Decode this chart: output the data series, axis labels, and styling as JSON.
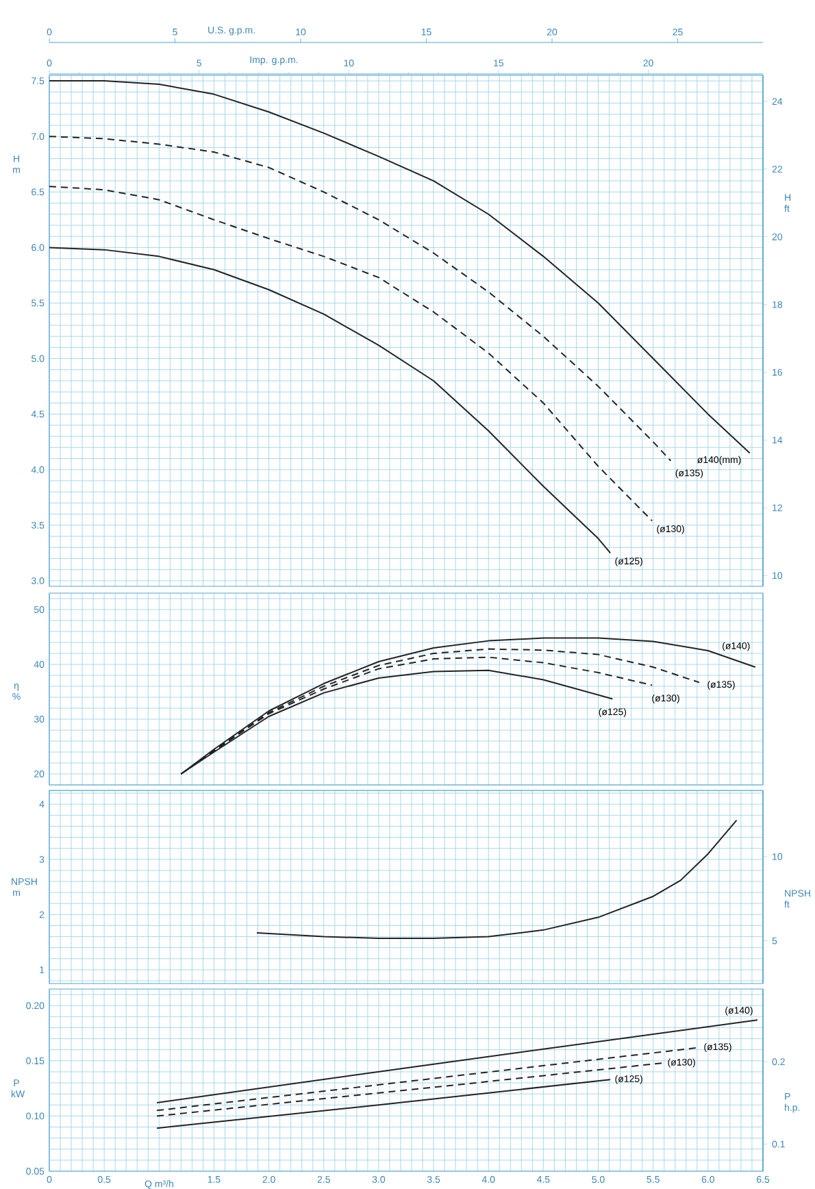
{
  "chart_data": [
    {
      "type": "line",
      "ylabel": "H m",
      "y2label": "H ft",
      "x2label": "Imp. g.p.m.",
      "grid": true,
      "tick_labels": "y",
      "annotations": [
        "U.S. g.p.m.",
        "0",
        "5",
        "10",
        "15",
        "20",
        "25"
      ],
      "xlim": [
        0,
        6.5
      ],
      "xticks": [
        0,
        0.1,
        0.2,
        0.3,
        0.4,
        0.5,
        0.6,
        0.7,
        0.8,
        0.9,
        1,
        1.1,
        1.2,
        1.3,
        1.4,
        1.5,
        1.6,
        1.7,
        1.8,
        1.9,
        2,
        2.1,
        2.2,
        2.3,
        2.4,
        2.5,
        2.6,
        2.7,
        2.8,
        2.9,
        3,
        3.1,
        3.2,
        3.3,
        3.4,
        3.5,
        3.6,
        3.7,
        3.8,
        3.9,
        4,
        4.1,
        4.2,
        4.3,
        4.4,
        4.5,
        4.6,
        4.7,
        4.8,
        4.9,
        5,
        5.1,
        5.2,
        5.3,
        5.4,
        5.5,
        5.6,
        5.7,
        5.8,
        5.9,
        6,
        6.1,
        6.2,
        6.3,
        6.4,
        6.5
      ],
      "x2lim": [
        0,
        23.83
      ],
      "x2ticks": [
        0,
        5,
        10,
        15,
        20
      ],
      "ylim": [
        2.95,
        7.55
      ],
      "yticks": [
        {
          "value": 3,
          "label": "3.0"
        },
        {
          "value": 3.1,
          "label": null
        },
        {
          "value": 3.2,
          "label": null
        },
        {
          "value": 3.3,
          "label": null
        },
        {
          "value": 3.4,
          "label": null
        },
        3.5,
        {
          "value": 3.6,
          "label": null
        },
        {
          "value": 3.7,
          "label": null
        },
        {
          "value": 3.8,
          "label": null
        },
        {
          "value": 3.9,
          "label": null
        },
        {
          "value": 4,
          "label": "4.0"
        },
        {
          "value": 4.1,
          "label": null
        },
        {
          "value": 4.2,
          "label": null
        },
        {
          "value": 4.3,
          "label": null
        },
        {
          "value": 4.4,
          "label": null
        },
        4.5,
        {
          "value": 4.6,
          "label": null
        },
        {
          "value": 4.7,
          "label": null
        },
        {
          "value": 4.8,
          "label": null
        },
        {
          "value": 4.9,
          "label": null
        },
        {
          "value": 5,
          "label": "5.0"
        },
        {
          "value": 5.1,
          "label": null
        },
        {
          "value": 5.2,
          "label": null
        },
        {
          "value": 5.3,
          "label": null
        },
        {
          "value": 5.4,
          "label": null
        },
        5.5,
        {
          "value": 5.6,
          "label": null
        },
        {
          "value": 5.7,
          "label": null
        },
        {
          "value": 5.8,
          "label": null
        },
        {
          "value": 5.9,
          "label": null
        },
        {
          "value": 6,
          "label": "6.0"
        },
        {
          "value": 6.1,
          "label": null
        },
        {
          "value": 6.2,
          "label": null
        },
        {
          "value": 6.3,
          "label": null
        },
        {
          "value": 6.4,
          "label": null
        },
        6.5,
        {
          "value": 6.6,
          "label": null
        },
        {
          "value": 6.7,
          "label": null
        },
        {
          "value": 6.8,
          "label": null
        },
        {
          "value": 6.9,
          "label": null
        },
        {
          "value": 7,
          "label": "7.0"
        },
        {
          "value": 7.1,
          "label": null
        },
        {
          "value": 7.2,
          "label": null
        },
        {
          "value": 7.3,
          "label": null
        },
        {
          "value": 7.4,
          "label": null
        },
        7.5
      ],
      "y2lim": [
        9.68,
        24.77
      ],
      "y2ticks": [
        10,
        12,
        14,
        16,
        18,
        20,
        22,
        24
      ],
      "series": [
        {
          "name": "ø140(mm)",
          "color": "#222222",
          "line_style": "solid",
          "x": [
            0,
            0.5,
            1,
            1.5,
            2,
            2.5,
            3,
            3.5,
            4,
            4.5,
            5,
            5.5,
            6,
            6.38
          ],
          "values": [
            7.5,
            7.5,
            7.47,
            7.38,
            7.22,
            7.03,
            6.82,
            6.6,
            6.3,
            5.92,
            5.5,
            5.0,
            4.5,
            4.15
          ]
        },
        {
          "name": "(ø135)",
          "color": "#222222",
          "line_style": "dashed",
          "x": [
            0,
            0.5,
            1,
            1.5,
            2,
            2.5,
            3,
            3.5,
            4,
            4.5,
            5,
            5.5,
            5.66
          ],
          "values": [
            7.0,
            6.98,
            6.93,
            6.86,
            6.72,
            6.5,
            6.25,
            5.95,
            5.6,
            5.2,
            4.75,
            4.25,
            4.08
          ]
        },
        {
          "name": "(ø130)",
          "color": "#222222",
          "line_style": "dashed",
          "x": [
            0,
            0.5,
            1,
            1.5,
            2,
            2.5,
            3,
            3.5,
            4,
            4.5,
            5,
            5.49
          ],
          "values": [
            6.55,
            6.52,
            6.43,
            6.25,
            6.08,
            5.92,
            5.73,
            5.42,
            5.05,
            4.6,
            4.03,
            3.54
          ]
        },
        {
          "name": "(ø125)",
          "color": "#222222",
          "line_style": "solid",
          "x": [
            0,
            0.5,
            1,
            1.5,
            2,
            2.5,
            3,
            3.5,
            4,
            4.5,
            5,
            5.11
          ],
          "values": [
            6.0,
            5.98,
            5.92,
            5.8,
            5.62,
            5.4,
            5.12,
            4.8,
            4.35,
            3.85,
            3.38,
            3.25
          ]
        }
      ]
    },
    {
      "type": "line",
      "ylabel": "η %",
      "grid": true,
      "tick_labels": "y",
      "xlim": [
        0,
        6.5
      ],
      "xticks": [
        0,
        0.1,
        0.2,
        0.3,
        0.4,
        0.5,
        0.6,
        0.7,
        0.8,
        0.9,
        1,
        1.1,
        1.2,
        1.3,
        1.4,
        1.5,
        1.6,
        1.7,
        1.8,
        1.9,
        2,
        2.1,
        2.2,
        2.3,
        2.4,
        2.5,
        2.6,
        2.7,
        2.8,
        2.9,
        3,
        3.1,
        3.2,
        3.3,
        3.4,
        3.5,
        3.6,
        3.7,
        3.8,
        3.9,
        4,
        4.1,
        4.2,
        4.3,
        4.4,
        4.5,
        4.6,
        4.7,
        4.8,
        4.9,
        5,
        5.1,
        5.2,
        5.3,
        5.4,
        5.5,
        5.6,
        5.7,
        5.8,
        5.9,
        6,
        6.1,
        6.2,
        6.3,
        6.4,
        6.5
      ],
      "ylim": [
        18,
        53
      ],
      "yticks": [
        {
          "value": 18,
          "label": null
        },
        20,
        {
          "value": 22,
          "label": null
        },
        {
          "value": 24,
          "label": null
        },
        {
          "value": 26,
          "label": null
        },
        {
          "value": 28,
          "label": null
        },
        30,
        {
          "value": 32,
          "label": null
        },
        {
          "value": 34,
          "label": null
        },
        {
          "value": 36,
          "label": null
        },
        {
          "value": 38,
          "label": null
        },
        40,
        {
          "value": 42,
          "label": null
        },
        {
          "value": 44,
          "label": null
        },
        {
          "value": 46,
          "label": null
        },
        {
          "value": 48,
          "label": null
        },
        50,
        {
          "value": 52,
          "label": null
        }
      ],
      "series": [
        {
          "name": "(ø140)",
          "color": "#222222",
          "line_style": "solid",
          "x": [
            1.2,
            1.5,
            2,
            2.5,
            3,
            3.5,
            4,
            4.5,
            5,
            5.5,
            6,
            6.43
          ],
          "values": [
            20,
            24.5,
            31.5,
            36.5,
            40.5,
            43,
            44.3,
            44.8,
            44.8,
            44.2,
            42.5,
            39.5
          ]
        },
        {
          "name": "(ø135)",
          "color": "#222222",
          "line_style": "dashed",
          "x": [
            1.2,
            1.5,
            2,
            2.5,
            3,
            3.5,
            4,
            4.5,
            5,
            5.5,
            5.92
          ],
          "values": [
            20,
            24.3,
            31.2,
            36,
            39.8,
            42,
            42.8,
            42.6,
            41.8,
            39.5,
            36.7
          ]
        },
        {
          "name": "(ø130)",
          "color": "#222222",
          "line_style": "dashed",
          "x": [
            1.2,
            1.5,
            2,
            2.5,
            3,
            3.5,
            4,
            4.5,
            5,
            5.49
          ],
          "values": [
            20,
            24.2,
            31,
            35.5,
            39.2,
            41,
            41.3,
            40.3,
            38.5,
            36.2
          ]
        },
        {
          "name": "(ø125)",
          "color": "#222222",
          "line_style": "solid",
          "x": [
            1.2,
            1.5,
            2,
            2.5,
            3,
            3.5,
            4,
            4.5,
            5.13
          ],
          "values": [
            20,
            24,
            30.5,
            34.8,
            37.5,
            38.7,
            38.9,
            37.2,
            33.7
          ]
        }
      ]
    },
    {
      "type": "line",
      "ylabel": "NPSH m",
      "y2label": "NPSH ft",
      "grid": true,
      "tick_labels": "y",
      "xlim": [
        0,
        6.5
      ],
      "xticks": [
        0,
        0.1,
        0.2,
        0.3,
        0.4,
        0.5,
        0.6,
        0.7,
        0.8,
        0.9,
        1,
        1.1,
        1.2,
        1.3,
        1.4,
        1.5,
        1.6,
        1.7,
        1.8,
        1.9,
        2,
        2.1,
        2.2,
        2.3,
        2.4,
        2.5,
        2.6,
        2.7,
        2.8,
        2.9,
        3,
        3.1,
        3.2,
        3.3,
        3.4,
        3.5,
        3.6,
        3.7,
        3.8,
        3.9,
        4,
        4.1,
        4.2,
        4.3,
        4.4,
        4.5,
        4.6,
        4.7,
        4.8,
        4.9,
        5,
        5.1,
        5.2,
        5.3,
        5.4,
        5.5,
        5.6,
        5.7,
        5.8,
        5.9,
        6,
        6.1,
        6.2,
        6.3,
        6.4,
        6.5
      ],
      "ylim": [
        0.75,
        4.25
      ],
      "yticks": [
        {
          "value": 0.8,
          "label": null
        },
        1,
        {
          "value": 1.2,
          "label": null
        },
        {
          "value": 1.4,
          "label": null
        },
        {
          "value": 1.6,
          "label": null
        },
        {
          "value": 1.8,
          "label": null
        },
        2,
        {
          "value": 2.2,
          "label": null
        },
        {
          "value": 2.4,
          "label": null
        },
        {
          "value": 2.6,
          "label": null
        },
        {
          "value": 2.8,
          "label": null
        },
        3,
        {
          "value": 3.2,
          "label": null
        },
        {
          "value": 3.4,
          "label": null
        },
        {
          "value": 3.6,
          "label": null
        },
        {
          "value": 3.8,
          "label": null
        },
        4,
        {
          "value": 4.2,
          "label": null
        }
      ],
      "y2lim": [
        2.46,
        13.94
      ],
      "y2ticks": [
        5,
        10
      ],
      "series": [
        {
          "color": "#222222",
          "line_style": "solid",
          "x": [
            1.89,
            2.5,
            3,
            3.5,
            4,
            4.5,
            5,
            5.5,
            5.75,
            6,
            6.26
          ],
          "values": [
            1.67,
            1.6,
            1.57,
            1.57,
            1.6,
            1.72,
            1.95,
            2.33,
            2.62,
            3.1,
            3.71
          ]
        }
      ]
    },
    {
      "type": "line",
      "ylabel": "P kW",
      "y2label": "P h.p.",
      "xlabel": "Q m³/h",
      "grid": true,
      "xlim": [
        0,
        6.5
      ],
      "xticks": [
        0,
        {
          "value": 0.1,
          "label": null
        },
        {
          "value": 0.2,
          "label": null
        },
        {
          "value": 0.3,
          "label": null
        },
        {
          "value": 0.4,
          "label": null
        },
        0.5,
        {
          "value": 0.6,
          "label": null
        },
        {
          "value": 0.7,
          "label": null
        },
        {
          "value": 0.8,
          "label": null
        },
        {
          "value": 0.9,
          "label": null
        },
        {
          "value": 1,
          "label": null
        },
        {
          "value": 1.1,
          "label": null
        },
        {
          "value": 1.2,
          "label": null
        },
        {
          "value": 1.3,
          "label": null
        },
        {
          "value": 1.4,
          "label": null
        },
        1.5,
        {
          "value": 1.6,
          "label": null
        },
        {
          "value": 1.7,
          "label": null
        },
        {
          "value": 1.8,
          "label": null
        },
        {
          "value": 1.9,
          "label": null
        },
        {
          "value": 2,
          "label": "2.0"
        },
        {
          "value": 2.1,
          "label": null
        },
        {
          "value": 2.2,
          "label": null
        },
        {
          "value": 2.3,
          "label": null
        },
        {
          "value": 2.4,
          "label": null
        },
        2.5,
        {
          "value": 2.6,
          "label": null
        },
        {
          "value": 2.7,
          "label": null
        },
        {
          "value": 2.8,
          "label": null
        },
        {
          "value": 2.9,
          "label": null
        },
        {
          "value": 3,
          "label": "3.0"
        },
        {
          "value": 3.1,
          "label": null
        },
        {
          "value": 3.2,
          "label": null
        },
        {
          "value": 3.3,
          "label": null
        },
        {
          "value": 3.4,
          "label": null
        },
        3.5,
        {
          "value": 3.6,
          "label": null
        },
        {
          "value": 3.7,
          "label": null
        },
        {
          "value": 3.8,
          "label": null
        },
        {
          "value": 3.9,
          "label": null
        },
        {
          "value": 4,
          "label": "4.0"
        },
        {
          "value": 4.1,
          "label": null
        },
        {
          "value": 4.2,
          "label": null
        },
        {
          "value": 4.3,
          "label": null
        },
        {
          "value": 4.4,
          "label": null
        },
        4.5,
        {
          "value": 4.6,
          "label": null
        },
        {
          "value": 4.7,
          "label": null
        },
        {
          "value": 4.8,
          "label": null
        },
        {
          "value": 4.9,
          "label": null
        },
        {
          "value": 5,
          "label": "5.0"
        },
        {
          "value": 5.1,
          "label": null
        },
        {
          "value": 5.2,
          "label": null
        },
        {
          "value": 5.3,
          "label": null
        },
        {
          "value": 5.4,
          "label": null
        },
        5.5,
        {
          "value": 5.6,
          "label": null
        },
        {
          "value": 5.7,
          "label": null
        },
        {
          "value": 5.8,
          "label": null
        },
        {
          "value": 5.9,
          "label": null
        },
        {
          "value": 6,
          "label": "6.0"
        },
        {
          "value": 6.1,
          "label": null
        },
        {
          "value": 6.2,
          "label": null
        },
        {
          "value": 6.3,
          "label": null
        },
        {
          "value": 6.4,
          "label": null
        },
        6.5
      ],
      "ylim": [
        0.05,
        0.215
      ],
      "yticks": [
        0.05,
        {
          "value": 0.06,
          "label": null
        },
        {
          "value": 0.07,
          "label": null
        },
        {
          "value": 0.08,
          "label": null
        },
        {
          "value": 0.09,
          "label": null
        },
        {
          "value": 0.1,
          "label": "0.10"
        },
        {
          "value": 0.11,
          "label": null
        },
        {
          "value": 0.12,
          "label": null
        },
        {
          "value": 0.13,
          "label": null
        },
        {
          "value": 0.14,
          "label": null
        },
        0.15,
        {
          "value": 0.16,
          "label": null
        },
        {
          "value": 0.17,
          "label": null
        },
        {
          "value": 0.18,
          "label": null
        },
        {
          "value": 0.19,
          "label": null
        },
        {
          "value": 0.2,
          "label": "0.20"
        },
        {
          "value": 0.21,
          "label": null
        }
      ],
      "y2lim": [
        0.0671,
        0.2883
      ],
      "y2ticks": [
        0.1,
        0.2
      ],
      "series": [
        {
          "name": "(ø140)",
          "color": "#222222",
          "line_style": "solid",
          "x": [
            0.98,
            3.5,
            6.45
          ],
          "values": [
            0.112,
            0.147,
            0.187
          ]
        },
        {
          "name": "(ø135)",
          "color": "#222222",
          "line_style": "dashed",
          "x": [
            0.98,
            3.5,
            5.92
          ],
          "values": [
            0.105,
            0.134,
            0.162
          ]
        },
        {
          "name": "(ø130)",
          "color": "#222222",
          "line_style": "dashed",
          "x": [
            0.98,
            3.5,
            5.59
          ],
          "values": [
            0.1,
            0.126,
            0.148
          ]
        },
        {
          "name": "(ø125)",
          "color": "#222222",
          "line_style": "solid",
          "x": [
            0.98,
            3.0,
            5.11
          ],
          "values": [
            0.089,
            0.11,
            0.133
          ]
        }
      ]
    }
  ]
}
